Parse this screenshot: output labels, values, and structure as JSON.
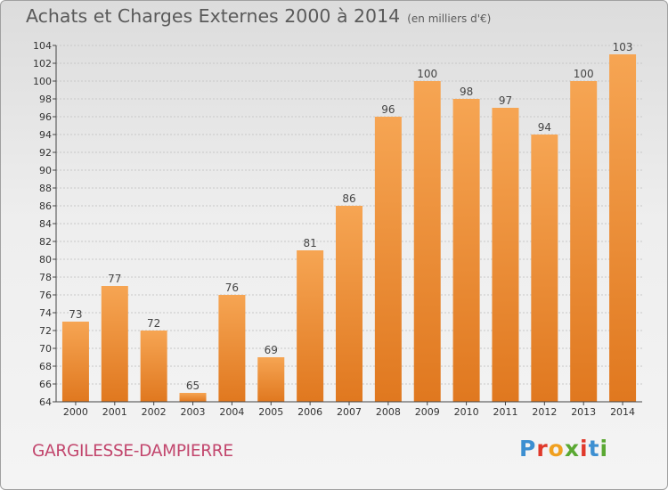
{
  "title": "Achats et Charges Externes 2000 à 2014",
  "subtitle": "(en milliers d'€)",
  "commune": "GARGILESSE-DAMPIERRE",
  "brand": {
    "letters": [
      {
        "ch": "P",
        "color": "#3d8fd1"
      },
      {
        "ch": "r",
        "color": "#e0392b"
      },
      {
        "ch": "o",
        "color": "#f0a020"
      },
      {
        "ch": "x",
        "color": "#5aa832"
      },
      {
        "ch": "i",
        "color": "#e0392b"
      },
      {
        "ch": "t",
        "color": "#3d8fd1"
      },
      {
        "ch": "i",
        "color": "#5aa832"
      }
    ]
  },
  "colors": {
    "bar_light": "#f6a553",
    "bar_dark": "#e0781f",
    "grid": "#c8c8c8",
    "axis": "#444444",
    "text": "#333333"
  },
  "chart_data": {
    "type": "bar",
    "title": "Achats et Charges Externes 2000 à 2014",
    "subtitle": "(en milliers d'€)",
    "categories": [
      "2000",
      "2001",
      "2002",
      "2003",
      "2004",
      "2005",
      "2006",
      "2007",
      "2008",
      "2009",
      "2010",
      "2011",
      "2012",
      "2013",
      "2014"
    ],
    "values": [
      73,
      77,
      72,
      65,
      76,
      69,
      81,
      86,
      96,
      100,
      98,
      97,
      94,
      100,
      103
    ],
    "ylim": [
      64,
      104
    ],
    "yticks": [
      64,
      66,
      68,
      70,
      72,
      74,
      76,
      78,
      80,
      82,
      84,
      86,
      88,
      90,
      92,
      94,
      96,
      98,
      100,
      102,
      104
    ],
    "grid": true,
    "data_labels": true
  }
}
